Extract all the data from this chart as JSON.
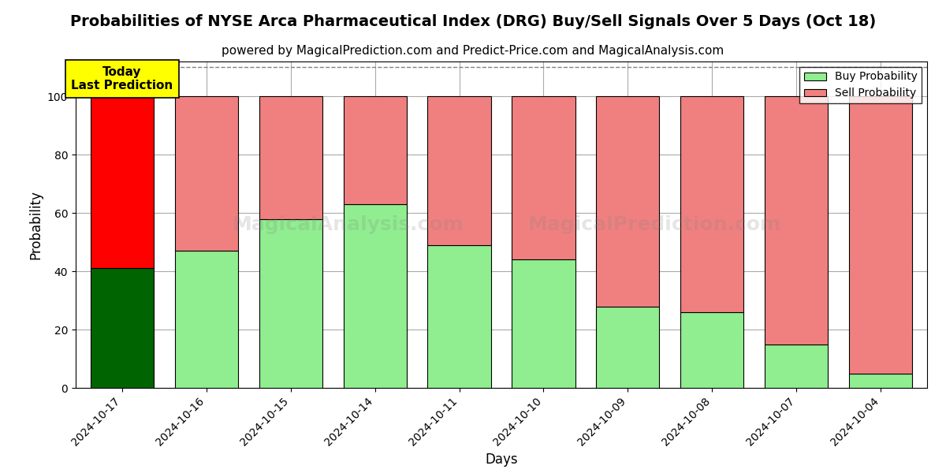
{
  "title": "Probabilities of NYSE Arca Pharmaceutical Index (DRG) Buy/Sell Signals Over 5 Days (Oct 18)",
  "subtitle": "powered by MagicalPrediction.com and Predict-Price.com and MagicalAnalysis.com",
  "xlabel": "Days",
  "ylabel": "Probability",
  "categories": [
    "2024-10-17",
    "2024-10-16",
    "2024-10-15",
    "2024-10-14",
    "2024-10-11",
    "2024-10-10",
    "2024-10-09",
    "2024-10-08",
    "2024-10-07",
    "2024-10-04"
  ],
  "buy_values": [
    41,
    47,
    58,
    63,
    49,
    44,
    28,
    26,
    15,
    5
  ],
  "sell_values": [
    59,
    53,
    42,
    37,
    51,
    56,
    72,
    74,
    85,
    95
  ],
  "today_buy_color": "#006400",
  "today_sell_color": "#FF0000",
  "buy_color": "#90EE90",
  "sell_color": "#F08080",
  "today_label_bg": "#FFFF00",
  "today_label_text": "Today\nLast Prediction",
  "legend_buy": "Buy Probability",
  "legend_sell": "Sell Probability",
  "ylim": [
    0,
    112
  ],
  "dashed_line_y": 110,
  "bar_edge_color": "black",
  "bar_edge_width": 0.8,
  "grid_color": "#AAAAAA",
  "background_color": "white",
  "title_fontsize": 14,
  "subtitle_fontsize": 11,
  "axis_label_fontsize": 12,
  "tick_fontsize": 10,
  "bar_width": 0.75
}
